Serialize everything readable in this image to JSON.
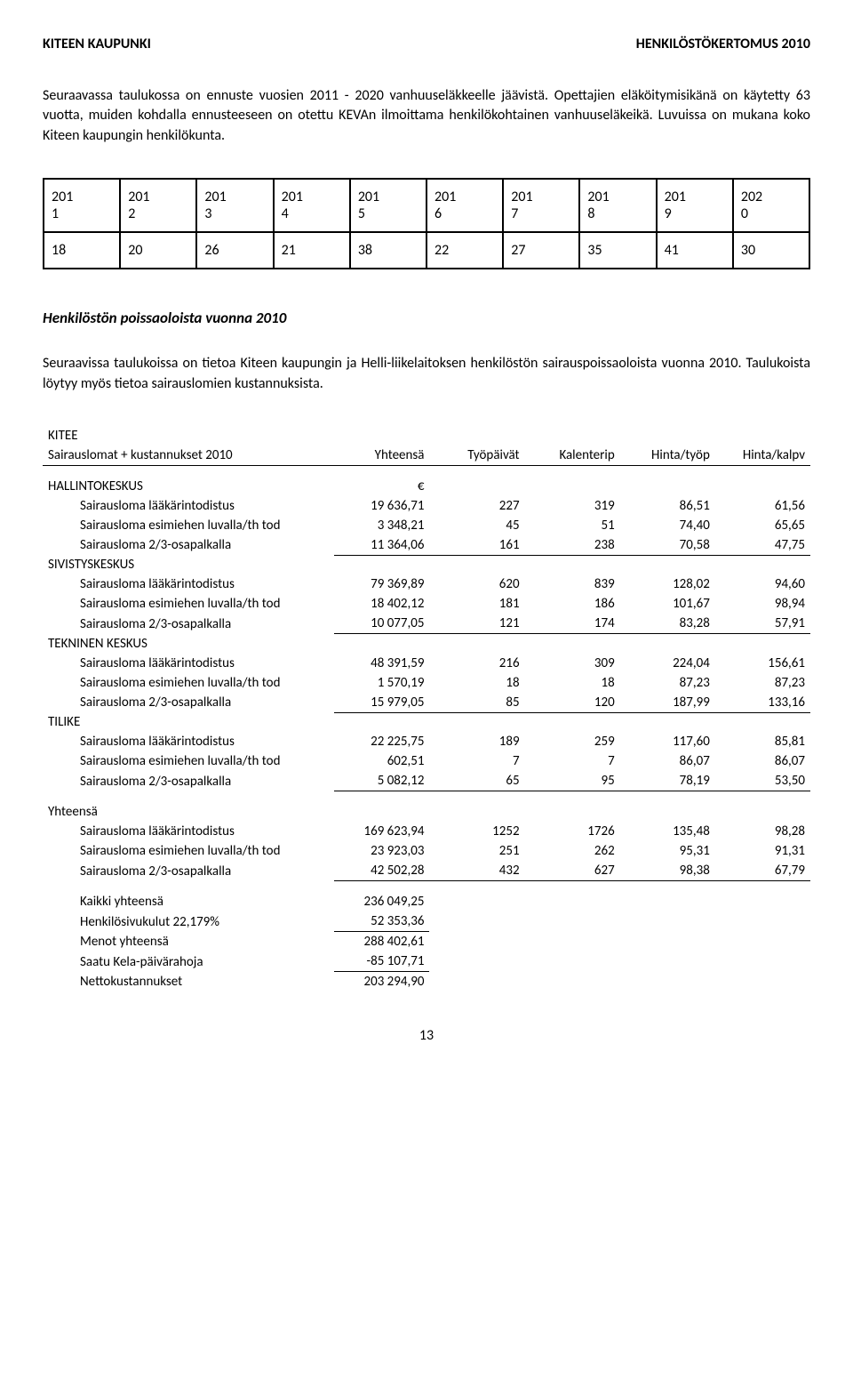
{
  "header": {
    "left": "KITEEN KAUPUNKI",
    "right": "HENKILÖSTÖKERTOMUS 2010"
  },
  "intro_para": "Seuraavassa taulukossa on ennuste vuosien 2011 - 2020 vanhuuseläkkeelle jäävistä. Opettajien eläköitymisikänä on käytetty 63 vuotta, muiden kohdalla ennusteeseen on otettu KEVAn ilmoittama henkilökohtainen vanhuuseläkeikä. Luvuissa on mukana koko Kiteen kaupungin henkilökunta.",
  "year_table": {
    "years": [
      "2011",
      "2012",
      "2013",
      "2014",
      "2015",
      "2016",
      "2017",
      "2018",
      "2019",
      "2020"
    ],
    "values": [
      "18",
      "20",
      "26",
      "21",
      "38",
      "22",
      "27",
      "35",
      "41",
      "30"
    ]
  },
  "section_title": "Henkilöstön poissaoloista vuonna 2010",
  "section_para": "Seuraavissa taulukoissa on tietoa Kiteen kaupungin ja Helli-liikelaitoksen henkilöstön sairauspoissaoloista vuonna 2010. Taulukoista löytyy myös tietoa sairauslomien kustannuksista.",
  "cost_table": {
    "org": "KITEE",
    "title": "Sairauslomat + kustannukset 2010",
    "headers": [
      "Yhteensä",
      "Työpäivät",
      "Kalenterip",
      "Hinta/työp",
      "Hinta/kalpv"
    ],
    "currency": "€",
    "groups": [
      {
        "name": "HALLINTOKESKUS",
        "show_currency": true,
        "rows": [
          {
            "label": "Sairausloma lääkärintodistus",
            "v": [
              "19 636,71",
              "227",
              "319",
              "86,51",
              "61,56"
            ]
          },
          {
            "label": "Sairausloma esimiehen luvalla/th tod",
            "v": [
              "3 348,21",
              "45",
              "51",
              "74,40",
              "65,65"
            ]
          },
          {
            "label": "Sairausloma 2/3-osapalkalla",
            "v": [
              "11 364,06",
              "161",
              "238",
              "70,58",
              "47,75"
            ]
          }
        ]
      },
      {
        "name": "SIVISTYSKESKUS",
        "rows": [
          {
            "label": "Sairausloma lääkärintodistus",
            "v": [
              "79 369,89",
              "620",
              "839",
              "128,02",
              "94,60"
            ]
          },
          {
            "label": "Sairausloma esimiehen luvalla/th tod",
            "v": [
              "18 402,12",
              "181",
              "186",
              "101,67",
              "98,94"
            ]
          },
          {
            "label": "Sairausloma 2/3-osapalkalla",
            "v": [
              "10 077,05",
              "121",
              "174",
              "83,28",
              "57,91"
            ]
          }
        ]
      },
      {
        "name": "TEKNINEN KESKUS",
        "rows": [
          {
            "label": "Sairausloma lääkärintodistus",
            "v": [
              "48 391,59",
              "216",
              "309",
              "224,04",
              "156,61"
            ]
          },
          {
            "label": "Sairausloma esimiehen luvalla/th tod",
            "v": [
              "1 570,19",
              "18",
              "18",
              "87,23",
              "87,23"
            ]
          },
          {
            "label": "Sairausloma 2/3-osapalkalla",
            "v": [
              "15 979,05",
              "85",
              "120",
              "187,99",
              "133,16"
            ]
          }
        ]
      },
      {
        "name": "TILIKE",
        "rows": [
          {
            "label": "Sairausloma lääkärintodistus",
            "v": [
              "22 225,75",
              "189",
              "259",
              "117,60",
              "85,81"
            ]
          },
          {
            "label": "Sairausloma esimiehen luvalla/th tod",
            "v": [
              "602,51",
              "7",
              "7",
              "86,07",
              "86,07"
            ]
          },
          {
            "label": "Sairausloma 2/3-osapalkalla",
            "v": [
              "5 082,12",
              "65",
              "95",
              "78,19",
              "53,50"
            ]
          }
        ]
      }
    ],
    "totals": {
      "name": "Yhteensä",
      "rows": [
        {
          "label": "Sairausloma lääkärintodistus",
          "v": [
            "169 623,94",
            "1252",
            "1726",
            "135,48",
            "98,28"
          ]
        },
        {
          "label": "Sairausloma esimiehen luvalla/th tod",
          "v": [
            "23 923,03",
            "251",
            "262",
            "95,31",
            "91,31"
          ]
        },
        {
          "label": "Sairausloma 2/3-osapalkalla",
          "v": [
            "42 502,28",
            "432",
            "627",
            "98,38",
            "67,79"
          ]
        }
      ]
    },
    "summary": [
      {
        "label": "Kaikki yhteensä",
        "v": "236 049,25"
      },
      {
        "label": "Henkilösivukulut 22,179%",
        "v": "52 353,36",
        "underline": true
      },
      {
        "label": "Menot yhteensä",
        "v": "288 402,61"
      },
      {
        "label": "Saatu Kela-päivärahoja",
        "v": "-85 107,71",
        "underline": true
      },
      {
        "label": "Nettokustannukset",
        "v": "203 294,90"
      }
    ]
  },
  "page_number": "13"
}
